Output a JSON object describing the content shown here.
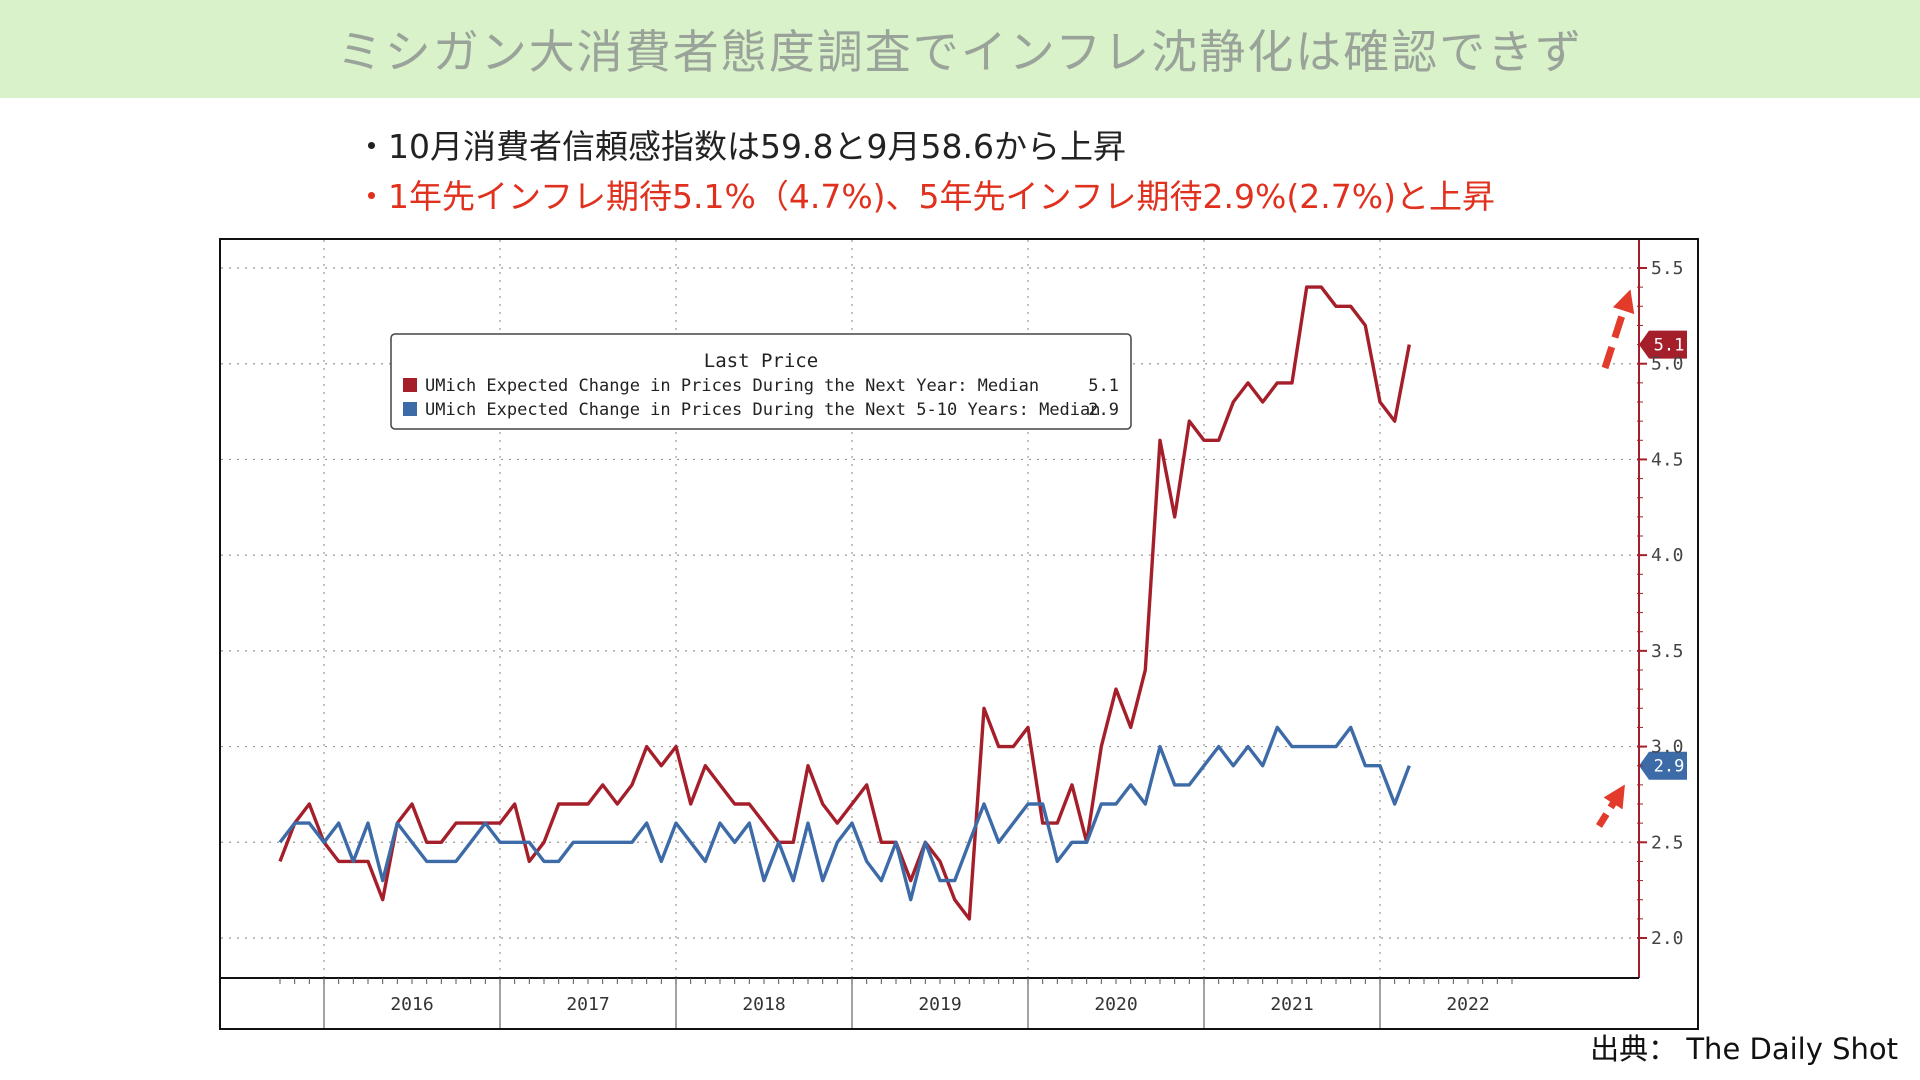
{
  "header": {
    "title": "ミシガン大消費者態度調査でインフレ沈静化は確認できず"
  },
  "bullets": [
    "・10月消費者信頼感指数は59.8と9月58.6から上昇",
    "・1年先インフレ期待5.1%（4.7%)、5年先インフレ期待2.9%(2.7%)と上昇"
  ],
  "source": "出典： The Daily Shot",
  "colors": {
    "series1": "#a51f2b",
    "series2": "#3d6ba8",
    "arrow": "#e23a2b",
    "banner": "#d9f2c9"
  },
  "chart_data": {
    "type": "line",
    "legend_title": "Last Price",
    "legend_position": "top-left",
    "grid": true,
    "x_labels": [
      "2016",
      "2017",
      "2018",
      "2019",
      "2020",
      "2021",
      "2022"
    ],
    "x_range": [
      "2015-10",
      "2022-10"
    ],
    "ylim": [
      1.8,
      5.6
    ],
    "y_ticks": [
      "2.0",
      "2.5",
      "3.0",
      "3.5",
      "4.0",
      "4.5",
      "5.0",
      "5.5"
    ],
    "series": [
      {
        "name": "UMich Expected Change in Prices During the Next Year: Median",
        "last_value": "5.1",
        "start": "2015-10",
        "values": [
          2.4,
          2.6,
          2.7,
          2.5,
          2.4,
          2.4,
          2.4,
          2.2,
          2.6,
          2.7,
          2.5,
          2.5,
          2.6,
          2.6,
          2.6,
          2.6,
          2.7,
          2.4,
          2.5,
          2.7,
          2.7,
          2.7,
          2.8,
          2.7,
          2.8,
          3.0,
          2.9,
          3.0,
          2.7,
          2.9,
          2.8,
          2.7,
          2.7,
          2.6,
          2.5,
          2.5,
          2.9,
          2.7,
          2.6,
          2.7,
          2.8,
          2.5,
          2.5,
          2.3,
          2.5,
          2.4,
          2.2,
          2.1,
          3.2,
          3.0,
          3.0,
          3.1,
          2.6,
          2.6,
          2.8,
          2.5,
          3.0,
          3.3,
          3.1,
          3.4,
          4.6,
          4.2,
          4.7,
          4.6,
          4.6,
          4.8,
          4.9,
          4.8,
          4.9,
          4.9,
          5.4,
          5.4,
          5.3,
          5.3,
          5.2,
          4.8,
          4.7,
          5.1
        ]
      },
      {
        "name": "UMich Expected Change in Prices During the Next 5-10 Years: Median",
        "last_value": "2.9",
        "start": "2015-10",
        "values": [
          2.5,
          2.6,
          2.6,
          2.5,
          2.6,
          2.4,
          2.6,
          2.3,
          2.6,
          2.5,
          2.4,
          2.4,
          2.4,
          2.5,
          2.6,
          2.5,
          2.5,
          2.5,
          2.4,
          2.4,
          2.5,
          2.5,
          2.5,
          2.5,
          2.5,
          2.6,
          2.4,
          2.6,
          2.5,
          2.4,
          2.6,
          2.5,
          2.6,
          2.3,
          2.5,
          2.3,
          2.6,
          2.3,
          2.5,
          2.6,
          2.4,
          2.3,
          2.5,
          2.2,
          2.5,
          2.3,
          2.3,
          2.5,
          2.7,
          2.5,
          2.6,
          2.7,
          2.7,
          2.4,
          2.5,
          2.5,
          2.7,
          2.7,
          2.8,
          2.7,
          3.0,
          2.8,
          2.8,
          2.9,
          3.0,
          2.9,
          3.0,
          2.9,
          3.1,
          3.0,
          3.0,
          3.0,
          3.0,
          3.1,
          2.9,
          2.9,
          2.7,
          2.9
        ]
      }
    ]
  }
}
